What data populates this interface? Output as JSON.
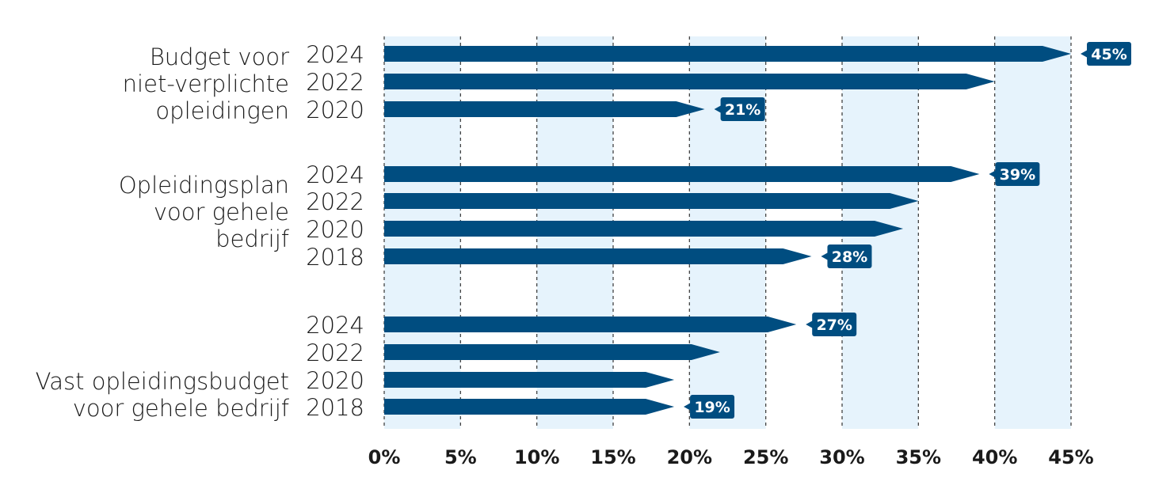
{
  "chart_data": {
    "type": "bar",
    "orientation": "horizontal",
    "xlim": [
      0,
      45
    ],
    "x_ticks": [
      "0%",
      "5%",
      "10%",
      "15%",
      "20%",
      "25%",
      "30%",
      "35%",
      "40%",
      "45%"
    ],
    "grid": "dashed vertical",
    "colors": {
      "bar": "#004d80",
      "band": "#e6f3fc",
      "grid": "#444444"
    },
    "groups": [
      {
        "label": "Budget voor niet-verplichte opleidingen",
        "label_lines": [
          "Budget voor",
          "niet-verplichte",
          "opleidingen"
        ],
        "bars": [
          {
            "year": "2024",
            "value": 45,
            "label": "45%"
          },
          {
            "year": "2022",
            "value": 40,
            "label": ""
          },
          {
            "year": "2020",
            "value": 21,
            "label": "21%"
          }
        ]
      },
      {
        "label": "Opleidingsplan voor gehele bedrijf",
        "label_lines": [
          "Opleidingsplan",
          "voor gehele",
          "bedrijf"
        ],
        "bars": [
          {
            "year": "2024",
            "value": 39,
            "label": "39%"
          },
          {
            "year": "2022",
            "value": 35,
            "label": ""
          },
          {
            "year": "2020",
            "value": 34,
            "label": ""
          },
          {
            "year": "2018",
            "value": 28,
            "label": "28%"
          }
        ]
      },
      {
        "label": "Vast opleidingsbudget voor gehele bedrijf",
        "label_lines": [
          "Vast opleidingsbudget",
          "voor gehele bedrijf"
        ],
        "bars": [
          {
            "year": "2024",
            "value": 27,
            "label": "27%"
          },
          {
            "year": "2022",
            "value": 22,
            "label": ""
          },
          {
            "year": "2020",
            "value": 19,
            "label": ""
          },
          {
            "year": "2018",
            "value": 19,
            "label": "19%"
          }
        ]
      }
    ]
  }
}
